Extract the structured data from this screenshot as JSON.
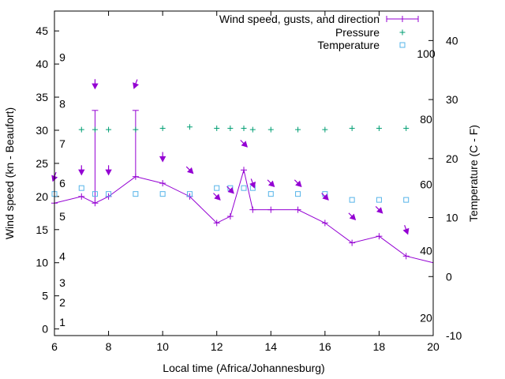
{
  "chart_data": {
    "type": "line",
    "xlabel": "Local time (Africa/Johannesburg)",
    "ylabel": "Wind speed (kn - Beaufort)",
    "y2label": "Temperature (C - F)",
    "xlim": [
      6,
      20
    ],
    "ylim": [
      -1,
      48
    ],
    "y2lim": [
      -10,
      45
    ],
    "x_ticks": [
      "6",
      "8",
      "10",
      "12",
      "14",
      "16",
      "18",
      "20"
    ],
    "y_ticks": [
      "0",
      "5",
      "10",
      "15",
      "20",
      "25",
      "30",
      "35",
      "40",
      "45"
    ],
    "y2_ticks": [
      "-10",
      "0",
      "10",
      "20",
      "30",
      "40"
    ],
    "beaufort_labels": [
      {
        "label": "1",
        "kn": 1
      },
      {
        "label": "2",
        "kn": 4
      },
      {
        "label": "3",
        "kn": 7
      },
      {
        "label": "4",
        "kn": 11
      },
      {
        "label": "5",
        "kn": 17
      },
      {
        "label": "6",
        "kn": 22
      },
      {
        "label": "7",
        "kn": 28
      },
      {
        "label": "8",
        "kn": 34
      },
      {
        "label": "9",
        "kn": 41
      }
    ],
    "fahrenheit_labels": [
      {
        "label": "20",
        "c": -7
      },
      {
        "label": "40",
        "c": 4.4
      },
      {
        "label": "60",
        "c": 15.6
      },
      {
        "label": "80",
        "c": 26.7
      },
      {
        "label": "100",
        "c": 37.8
      }
    ],
    "legend": {
      "position": "top-right",
      "entries": [
        "Wind speed, gusts, and direction",
        "Pressure",
        "Temperature"
      ]
    },
    "colors": {
      "wind": "#9400d3",
      "pressure": "#009e73",
      "temperature": "#56b4e9"
    },
    "series": [
      {
        "name": "Wind speed, gusts, and direction",
        "x": [
          6,
          7,
          7.5,
          8,
          9,
          10,
          11,
          12,
          12.5,
          13,
          13.33,
          14,
          15,
          16,
          17,
          18,
          19,
          20
        ],
        "values": [
          19,
          20,
          19,
          20,
          23,
          22,
          20,
          16,
          17,
          24,
          18,
          18,
          18,
          16,
          13,
          14,
          11,
          10
        ],
        "gusts": [
          null,
          null,
          33,
          null,
          33,
          null,
          null,
          null,
          null,
          null,
          null,
          null,
          null,
          null,
          null,
          null,
          null,
          null
        ]
      },
      {
        "name": "Pressure",
        "x": [
          7,
          7.5,
          8,
          9,
          10,
          11,
          12,
          12.5,
          13,
          13.33,
          14,
          15,
          16,
          17,
          18,
          19
        ],
        "values": [
          30.1,
          30.1,
          30.1,
          30.1,
          30.3,
          30.5,
          30.3,
          30.3,
          30.3,
          30.1,
          30.1,
          30.1,
          30.1,
          30.3,
          30.3,
          30.3
        ]
      },
      {
        "name": "Temperature",
        "x": [
          6,
          7,
          7.5,
          8,
          9,
          10,
          11,
          12,
          12.5,
          13,
          13.33,
          14,
          15,
          16,
          17,
          18,
          19
        ],
        "values": [
          14,
          15,
          14,
          14,
          14,
          14,
          14,
          15,
          15,
          15,
          15,
          14,
          14,
          14,
          13,
          13,
          13
        ]
      }
    ],
    "wind_arrows": [
      {
        "x": 6,
        "kn": 23,
        "dir": 200
      },
      {
        "x": 7,
        "kn": 24,
        "dir": 180
      },
      {
        "x": 7.5,
        "kn": 37,
        "dir": 180
      },
      {
        "x": 8,
        "kn": 24,
        "dir": 180
      },
      {
        "x": 9,
        "kn": 37,
        "dir": 200
      },
      {
        "x": 10,
        "kn": 26,
        "dir": 180
      },
      {
        "x": 11,
        "kn": 24,
        "dir": 135
      },
      {
        "x": 12,
        "kn": 20,
        "dir": 135
      },
      {
        "x": 12.5,
        "kn": 21,
        "dir": 135
      },
      {
        "x": 13,
        "kn": 28,
        "dir": 135
      },
      {
        "x": 13.33,
        "kn": 22,
        "dir": 160
      },
      {
        "x": 14,
        "kn": 22,
        "dir": 135
      },
      {
        "x": 15,
        "kn": 22,
        "dir": 135
      },
      {
        "x": 16,
        "kn": 20,
        "dir": 135
      },
      {
        "x": 17,
        "kn": 17,
        "dir": 135
      },
      {
        "x": 18,
        "kn": 18,
        "dir": 135
      },
      {
        "x": 19,
        "kn": 15,
        "dir": 160
      }
    ]
  }
}
